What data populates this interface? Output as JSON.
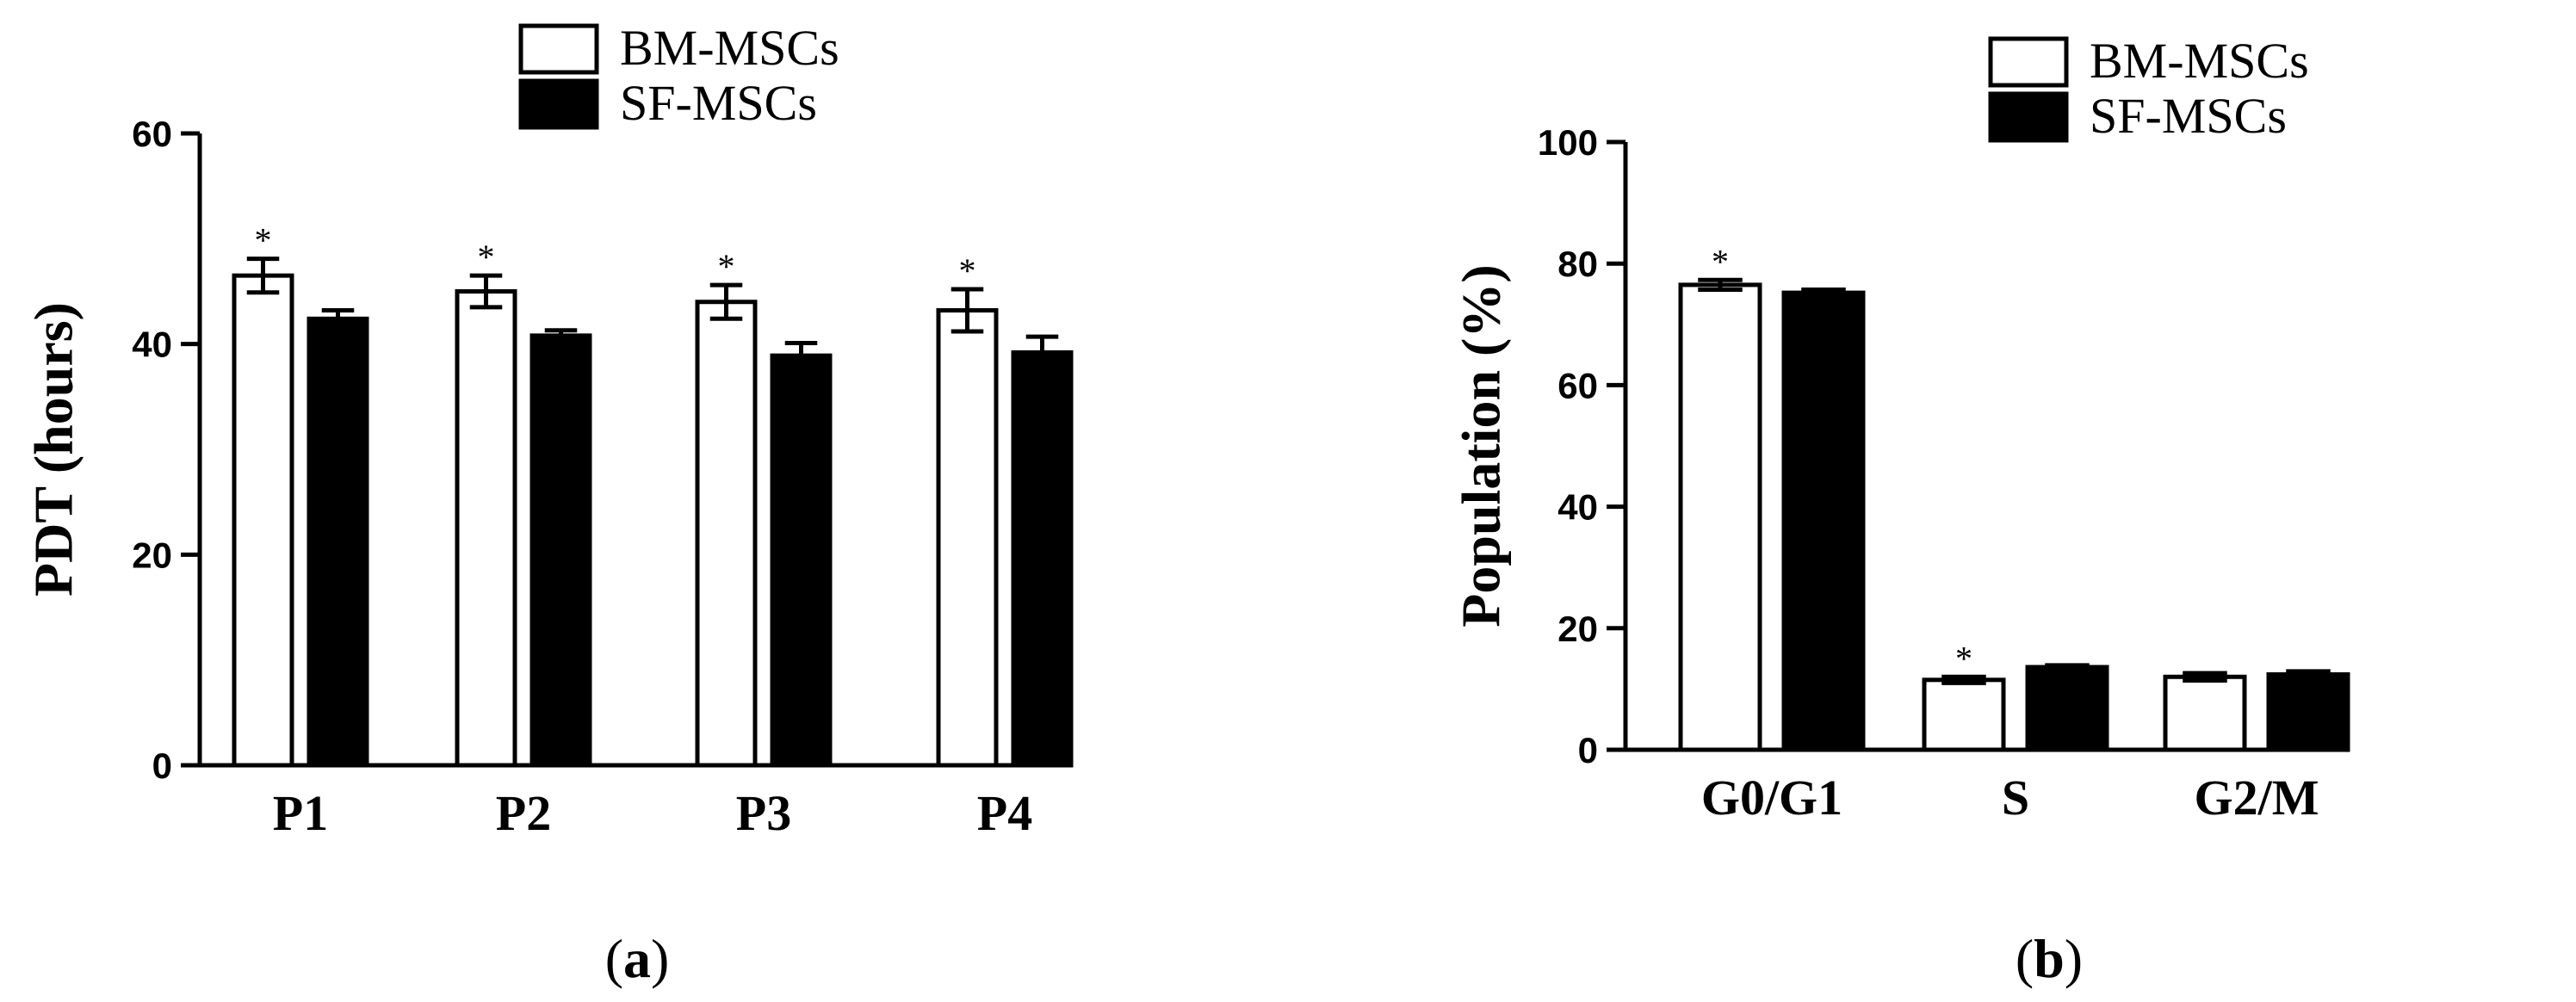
{
  "chart_data": [
    {
      "type": "bar",
      "panel_label": "(a)",
      "panel_letter": "a",
      "title": "",
      "xlabel": "",
      "ylabel": "PDT (hours)",
      "ylim": [
        0,
        60
      ],
      "yticks": [
        0,
        20,
        40,
        60
      ],
      "categories": [
        "P1",
        "P2",
        "P3",
        "P4"
      ],
      "series": [
        {
          "name": "BM-MSCs",
          "fill": "#ffffff",
          "values": [
            46.5,
            45.0,
            44.0,
            43.2
          ],
          "errors": [
            1.6,
            1.5,
            1.6,
            2.0
          ],
          "significant": [
            true,
            true,
            true,
            true
          ]
        },
        {
          "name": "SF-MSCs",
          "fill": "#000000",
          "values": [
            42.4,
            40.8,
            38.9,
            39.2
          ],
          "errors": [
            0.8,
            0.5,
            1.2,
            1.5
          ],
          "significant": [
            false,
            false,
            false,
            false
          ]
        }
      ],
      "legend_position": "top-center",
      "significance_marker": "*"
    },
    {
      "type": "bar",
      "panel_label": "(b)",
      "panel_letter": "b",
      "title": "",
      "xlabel": "",
      "ylabel": "Population (%)",
      "ylim": [
        0,
        100
      ],
      "yticks": [
        0,
        20,
        40,
        60,
        80,
        100
      ],
      "categories": [
        "G0/G1",
        "S",
        "G2/M"
      ],
      "series": [
        {
          "name": "BM-MSCs",
          "fill": "#ffffff",
          "values": [
            76.5,
            11.5,
            12.0
          ],
          "errors": [
            0.8,
            0.5,
            0.6
          ],
          "significant": [
            true,
            true,
            false
          ]
        },
        {
          "name": "SF-MSCs",
          "fill": "#000000",
          "values": [
            75.2,
            13.6,
            12.4
          ],
          "errors": [
            0.5,
            0.3,
            0.5
          ],
          "significant": [
            false,
            false,
            false
          ]
        }
      ],
      "legend_position": "top-center",
      "significance_marker": "*"
    }
  ]
}
